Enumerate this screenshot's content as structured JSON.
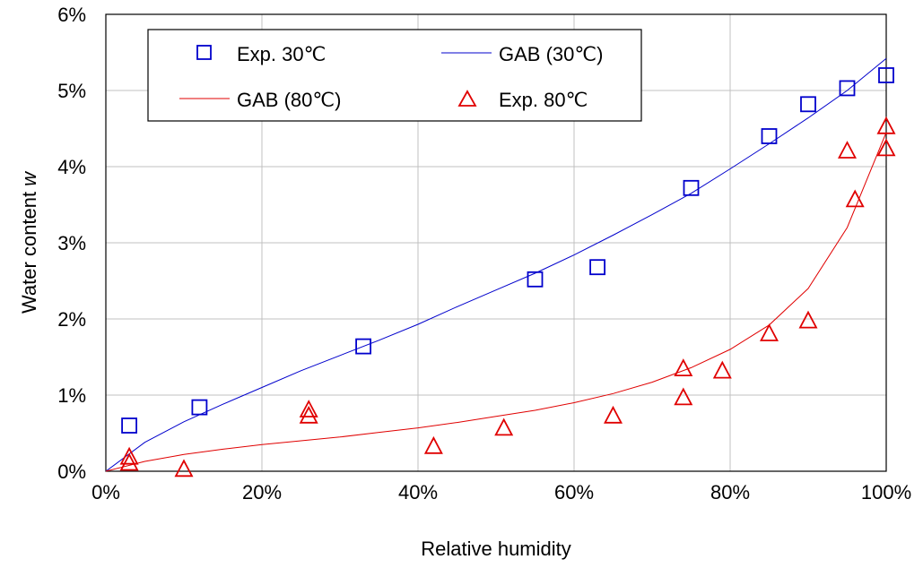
{
  "chart_data": {
    "type": "scatter",
    "xlabel": "Relative humidity",
    "ylabel_main": "Water content",
    "ylabel_var": "w",
    "xlim": [
      0,
      100
    ],
    "ylim": [
      0,
      6
    ],
    "x_ticks": [
      "0%",
      "20%",
      "40%",
      "60%",
      "80%",
      "100%"
    ],
    "x_tick_values": [
      0,
      20,
      40,
      60,
      80,
      100
    ],
    "y_ticks": [
      "0%",
      "1%",
      "2%",
      "3%",
      "4%",
      "5%",
      "6%"
    ],
    "y_tick_values": [
      0,
      1,
      2,
      3,
      4,
      5,
      6
    ],
    "grid": true,
    "legend_placement": "top-left",
    "series": [
      {
        "name": "Exp. 30℃",
        "kind": "points",
        "marker": "square",
        "color": "#0000cc",
        "points": [
          [
            3,
            0.6
          ],
          [
            12,
            0.84
          ],
          [
            33,
            1.64
          ],
          [
            55,
            2.52
          ],
          [
            63,
            2.68
          ],
          [
            75,
            3.72
          ],
          [
            85,
            4.4
          ],
          [
            90,
            4.82
          ],
          [
            95,
            5.03
          ],
          [
            100,
            5.2
          ]
        ]
      },
      {
        "name": "GAB (30℃)",
        "kind": "line",
        "color": "#0000cc",
        "points": [
          [
            0,
            0
          ],
          [
            5,
            0.38
          ],
          [
            10,
            0.65
          ],
          [
            15,
            0.88
          ],
          [
            20,
            1.1
          ],
          [
            25,
            1.32
          ],
          [
            30,
            1.52
          ],
          [
            35,
            1.72
          ],
          [
            40,
            1.93
          ],
          [
            45,
            2.16
          ],
          [
            50,
            2.38
          ],
          [
            55,
            2.6
          ],
          [
            60,
            2.84
          ],
          [
            65,
            3.1
          ],
          [
            70,
            3.37
          ],
          [
            75,
            3.65
          ],
          [
            80,
            3.97
          ],
          [
            85,
            4.3
          ],
          [
            90,
            4.64
          ],
          [
            95,
            5.0
          ],
          [
            100,
            5.42
          ]
        ]
      },
      {
        "name": "GAB (80℃)",
        "kind": "line",
        "color": "#e00000",
        "points": [
          [
            0,
            0
          ],
          [
            5,
            0.13
          ],
          [
            10,
            0.22
          ],
          [
            15,
            0.29
          ],
          [
            20,
            0.35
          ],
          [
            25,
            0.4
          ],
          [
            30,
            0.45
          ],
          [
            35,
            0.51
          ],
          [
            40,
            0.57
          ],
          [
            45,
            0.64
          ],
          [
            50,
            0.72
          ],
          [
            55,
            0.8
          ],
          [
            60,
            0.9
          ],
          [
            65,
            1.02
          ],
          [
            70,
            1.17
          ],
          [
            75,
            1.36
          ],
          [
            80,
            1.6
          ],
          [
            85,
            1.92
          ],
          [
            90,
            2.4
          ],
          [
            95,
            3.2
          ],
          [
            100,
            4.45
          ]
        ]
      },
      {
        "name": "Exp. 80℃",
        "kind": "points",
        "marker": "triangle",
        "color": "#e00000",
        "points": [
          [
            3,
            0.18
          ],
          [
            3,
            0.1
          ],
          [
            10,
            0.02
          ],
          [
            26,
            0.8
          ],
          [
            26,
            0.72
          ],
          [
            42,
            0.32
          ],
          [
            51,
            0.56
          ],
          [
            65,
            0.72
          ],
          [
            74,
            1.34
          ],
          [
            74,
            0.96
          ],
          [
            79,
            1.31
          ],
          [
            85,
            1.8
          ],
          [
            90,
            1.97
          ],
          [
            95,
            4.2
          ],
          [
            96,
            3.56
          ],
          [
            100,
            4.52
          ],
          [
            100,
            4.23
          ]
        ]
      }
    ]
  }
}
